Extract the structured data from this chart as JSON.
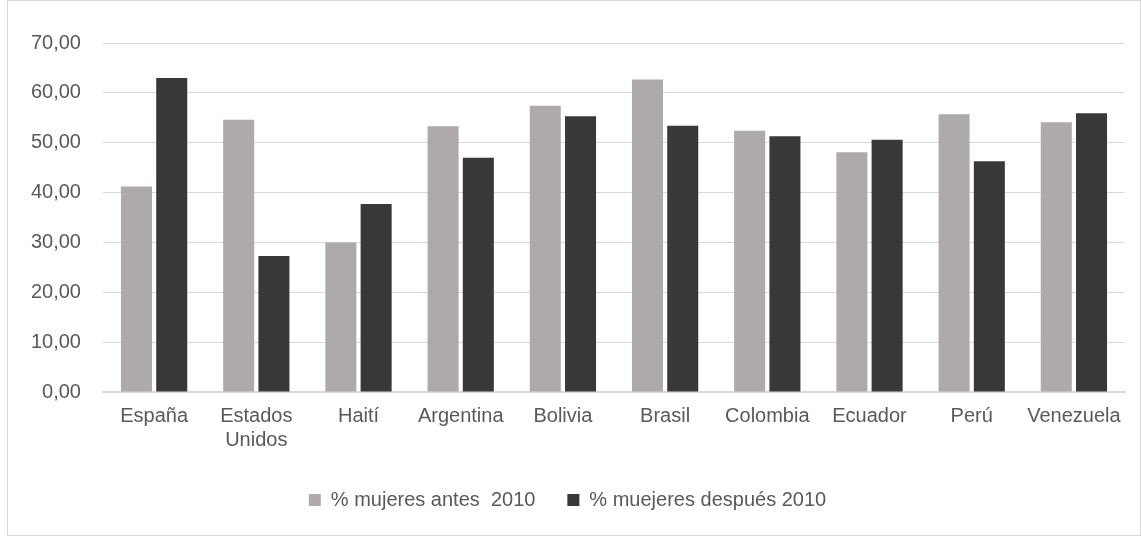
{
  "chart_data": {
    "type": "bar",
    "categories": [
      "España",
      "Estados Unidos",
      "Haití",
      "Argentina",
      "Bolivia",
      "Brasil",
      "Colombia",
      "Ecuador",
      "Perú",
      "Venezuela"
    ],
    "series": [
      {
        "name": "% mujeres antes  2010",
        "color": "#aeaaaa",
        "values": [
          41.2,
          54.6,
          30.0,
          53.3,
          57.4,
          62.7,
          52.4,
          48.1,
          55.7,
          54.1
        ]
      },
      {
        "name": "% muejeres después 2010",
        "color": "#3a3836",
        "values": [
          63.0,
          27.3,
          37.7,
          47.0,
          55.3,
          53.4,
          51.3,
          50.6,
          46.3,
          55.9
        ]
      }
    ],
    "ylim": [
      0,
      70
    ],
    "yticks": [
      {
        "value": 0,
        "label": "0,00"
      },
      {
        "value": 10,
        "label": "10,00"
      },
      {
        "value": 20,
        "label": "20,00"
      },
      {
        "value": 30,
        "label": "30,00"
      },
      {
        "value": 40,
        "label": "40,00"
      },
      {
        "value": 50,
        "label": "50,00"
      },
      {
        "value": 60,
        "label": "60,00"
      },
      {
        "value": 70,
        "label": "70,00"
      }
    ],
    "grid": "y",
    "legend": "bottom"
  }
}
